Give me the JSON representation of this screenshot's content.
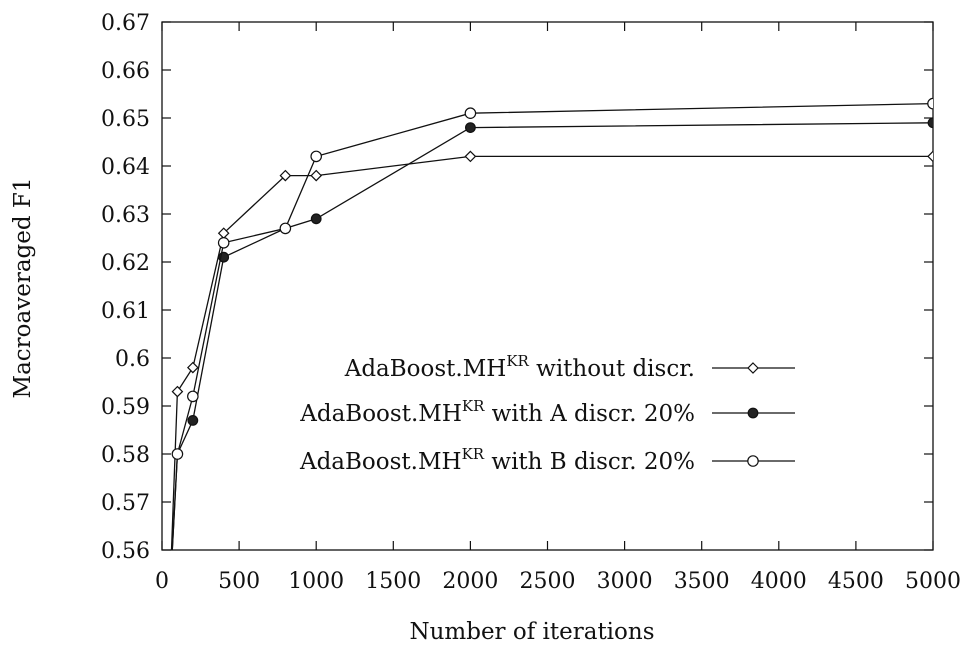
{
  "chart_data": {
    "type": "line",
    "title": "",
    "xlabel": "Number of iterations",
    "ylabel": "Macroaveraged F1",
    "xlim": [
      0,
      5000
    ],
    "ylim": [
      0.56,
      0.67
    ],
    "xticks": [
      "0",
      "500",
      "1000",
      "1500",
      "2000",
      "2500",
      "3000",
      "3500",
      "4000",
      "4500",
      "5000"
    ],
    "yticks": [
      "0.56",
      "0.57",
      "0.58",
      "0.59",
      "0.6",
      "0.61",
      "0.62",
      "0.63",
      "0.64",
      "0.65",
      "0.66",
      "0.67"
    ],
    "grid": false,
    "legend_position": "center-right",
    "series": [
      {
        "name": "AdaBoost.MH",
        "name_superscript": "KR",
        "name_suffix": " without discr.",
        "marker": "diamond",
        "color": "#111111",
        "x": [
          50,
          100,
          200,
          400,
          800,
          1000,
          2000,
          5000
        ],
        "y": [
          0.55,
          0.593,
          0.598,
          0.626,
          0.638,
          0.638,
          0.642,
          0.642
        ]
      },
      {
        "name": "AdaBoost.MH",
        "name_superscript": "KR",
        "name_suffix": " with A discr. 20%",
        "marker": "filled-circle",
        "color": "#111111",
        "x": [
          50,
          100,
          200,
          400,
          800,
          1000,
          2000,
          5000
        ],
        "y": [
          0.55,
          0.58,
          0.587,
          0.621,
          0.627,
          0.629,
          0.648,
          0.649
        ]
      },
      {
        "name": "AdaBoost.MH",
        "name_superscript": "KR",
        "name_suffix": " with B discr. 20%",
        "marker": "open-circle",
        "color": "#111111",
        "x": [
          50,
          100,
          200,
          400,
          800,
          1000,
          2000,
          5000
        ],
        "y": [
          0.55,
          0.58,
          0.592,
          0.624,
          0.627,
          0.642,
          0.651,
          0.653
        ]
      }
    ]
  }
}
